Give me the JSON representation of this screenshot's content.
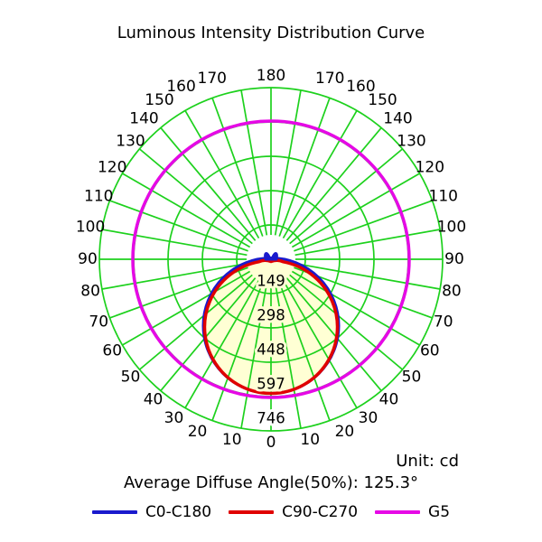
{
  "title": "Luminous Intensity Distribution Curve",
  "unit_label": "Unit: cd",
  "average_diffuse_label": "Average Diffuse Angle(50%): 125.3°",
  "colors": {
    "background": "#ffffff",
    "grid": "#1dd11d",
    "c0": "#1a1acd",
    "c90": "#e00000",
    "g5": "#e608e6",
    "lobe_fill": "#ffffd4",
    "text": "#000000"
  },
  "legend": {
    "items": [
      {
        "label": "C0-C180",
        "color_key": "c0"
      },
      {
        "label": "C90-C270",
        "color_key": "c90"
      },
      {
        "label": "G5",
        "color_key": "g5"
      }
    ]
  },
  "chart_data": {
    "type": "line",
    "projection": "polar",
    "title": "Luminous Intensity Distribution Curve",
    "unit": "cd",
    "angle_convention": "0 deg at bottom (beam axis), 180 deg at top, angle labels mirrored on left and right sides",
    "angle_ticks_deg": [
      0,
      10,
      20,
      30,
      40,
      50,
      60,
      70,
      80,
      90,
      100,
      110,
      120,
      130,
      140,
      150,
      160,
      170,
      180
    ],
    "radial_ticks_cd": [
      149,
      298,
      448,
      597,
      746
    ],
    "r_max_cd": 746,
    "grid": "on",
    "legend_position": "bottom",
    "average_diffuse_angle_50pct_deg": 125.3,
    "series": [
      {
        "name": "C0-C180",
        "color": "#1a1acd",
        "angles_deg": [
          0,
          10,
          20,
          30,
          40,
          50,
          60,
          70,
          80,
          90
        ],
        "values_cd": [
          585,
          576,
          550,
          507,
          448,
          376,
          293,
          200,
          102,
          0
        ],
        "note": "cosine-shaped lobe pointing down; tiny residual notch lobe at 90-95 deg near origin"
      },
      {
        "name": "C90-C270",
        "color": "#e00000",
        "angles_deg": [
          0,
          10,
          20,
          30,
          40,
          50,
          60,
          70,
          80,
          90
        ],
        "values_cd": [
          577,
          568,
          542,
          500,
          442,
          371,
          289,
          197,
          100,
          0
        ],
        "note": "cosine-shaped lobe pointing down, slightly narrower than C0-C180"
      },
      {
        "name": "G5",
        "color": "#e608e6",
        "shape": "constant-radius circle",
        "value_cd": 601
      }
    ],
    "legend_entries": [
      "C0-C180",
      "C90-C270",
      "G5"
    ],
    "annotations": [
      "Unit: cd",
      "Average Diffuse Angle(50%): 125.3°"
    ]
  }
}
